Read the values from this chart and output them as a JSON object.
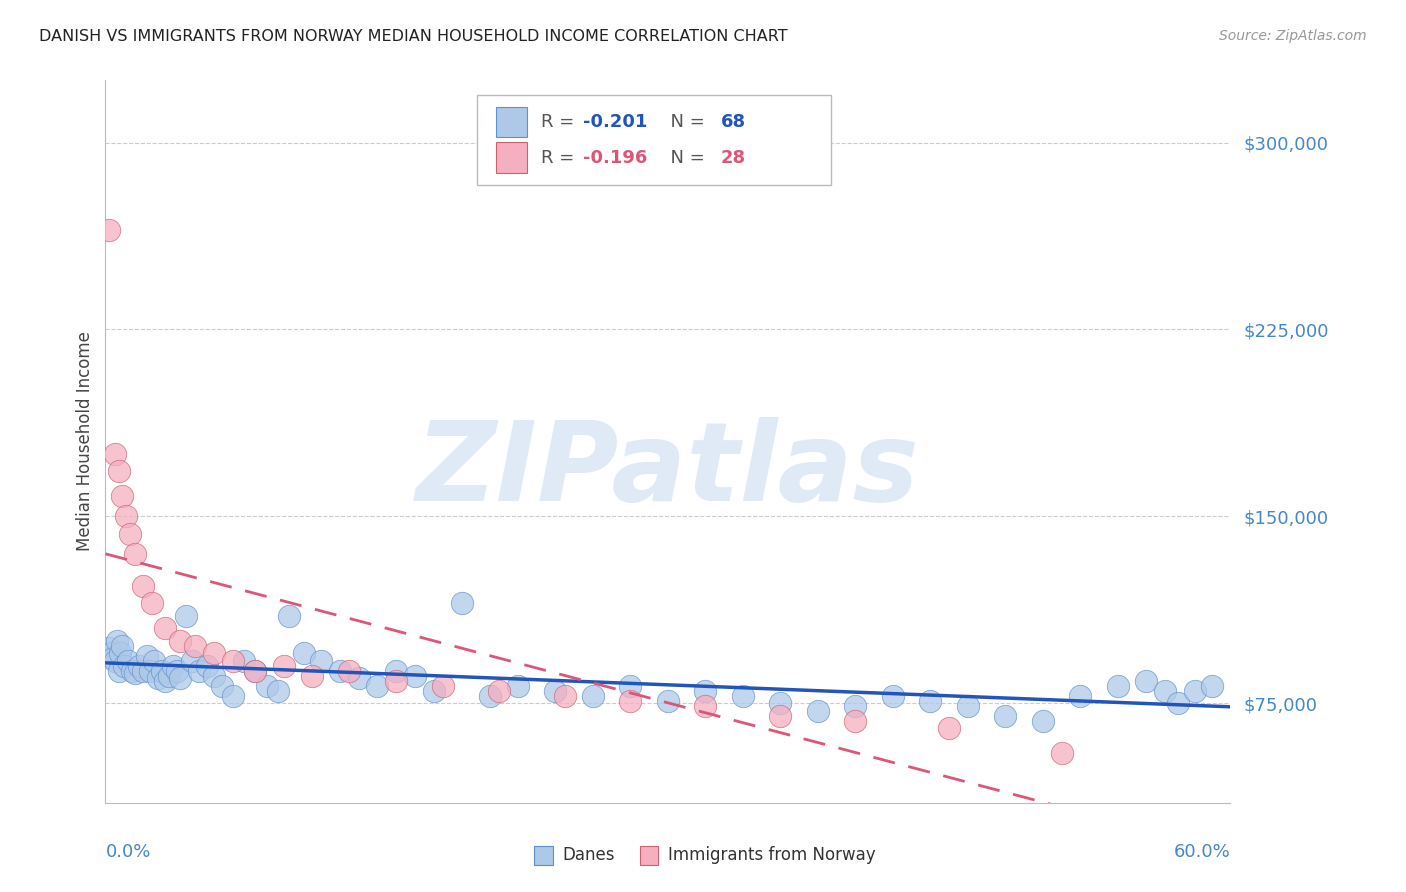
{
  "title": "DANISH VS IMMIGRANTS FROM NORWAY MEDIAN HOUSEHOLD INCOME CORRELATION CHART",
  "source": "Source: ZipAtlas.com",
  "ylabel": "Median Household Income",
  "yticks": [
    75000,
    150000,
    225000,
    300000
  ],
  "ytick_labels": [
    "$75,000",
    "$150,000",
    "$225,000",
    "$300,000"
  ],
  "xlim": [
    0.0,
    0.6
  ],
  "ylim": [
    35000,
    325000
  ],
  "danes_R": -0.201,
  "danes_N": 68,
  "norway_R": -0.196,
  "norway_N": 28,
  "danes_color": "#aec9e8",
  "norway_color": "#f4afc0",
  "danes_edge_color": "#6090cc",
  "norway_edge_color": "#d06070",
  "danes_line_color": "#2255bb",
  "norway_line_color": "#dd5577",
  "grid_color": "#cccccc",
  "tick_label_color": "#4488cc",
  "watermark_color": "#c5d9f0",
  "background_color": "#ffffff",
  "danes_x": [
    0.002,
    0.003,
    0.004,
    0.005,
    0.006,
    0.007,
    0.008,
    0.009,
    0.01,
    0.012,
    0.014,
    0.016,
    0.018,
    0.02,
    0.022,
    0.024,
    0.026,
    0.028,
    0.03,
    0.032,
    0.034,
    0.036,
    0.038,
    0.04,
    0.043,
    0.046,
    0.05,
    0.054,
    0.058,
    0.062,
    0.068,
    0.074,
    0.08,
    0.086,
    0.092,
    0.098,
    0.106,
    0.115,
    0.125,
    0.135,
    0.145,
    0.155,
    0.165,
    0.175,
    0.19,
    0.205,
    0.22,
    0.24,
    0.26,
    0.28,
    0.3,
    0.32,
    0.34,
    0.36,
    0.38,
    0.4,
    0.42,
    0.44,
    0.46,
    0.48,
    0.5,
    0.52,
    0.54,
    0.555,
    0.565,
    0.572,
    0.581,
    0.59
  ],
  "danes_y": [
    97000,
    95000,
    93000,
    92000,
    100000,
    88000,
    95000,
    98000,
    90000,
    92000,
    88000,
    87000,
    90000,
    88000,
    94000,
    88000,
    92000,
    85000,
    88000,
    84000,
    86000,
    90000,
    88000,
    85000,
    110000,
    92000,
    88000,
    90000,
    86000,
    82000,
    78000,
    92000,
    88000,
    82000,
    80000,
    110000,
    95000,
    92000,
    88000,
    85000,
    82000,
    88000,
    86000,
    80000,
    115000,
    78000,
    82000,
    80000,
    78000,
    82000,
    76000,
    80000,
    78000,
    75000,
    72000,
    74000,
    78000,
    76000,
    74000,
    70000,
    68000,
    78000,
    82000,
    84000,
    80000,
    75000,
    80000,
    82000
  ],
  "norway_x": [
    0.002,
    0.005,
    0.007,
    0.009,
    0.011,
    0.013,
    0.016,
    0.02,
    0.025,
    0.032,
    0.04,
    0.048,
    0.058,
    0.068,
    0.08,
    0.095,
    0.11,
    0.13,
    0.155,
    0.18,
    0.21,
    0.245,
    0.28,
    0.32,
    0.36,
    0.4,
    0.45,
    0.51
  ],
  "norway_y": [
    265000,
    175000,
    168000,
    158000,
    150000,
    143000,
    135000,
    122000,
    115000,
    105000,
    100000,
    98000,
    95000,
    92000,
    88000,
    90000,
    86000,
    88000,
    84000,
    82000,
    80000,
    78000,
    76000,
    74000,
    70000,
    68000,
    65000,
    55000
  ]
}
